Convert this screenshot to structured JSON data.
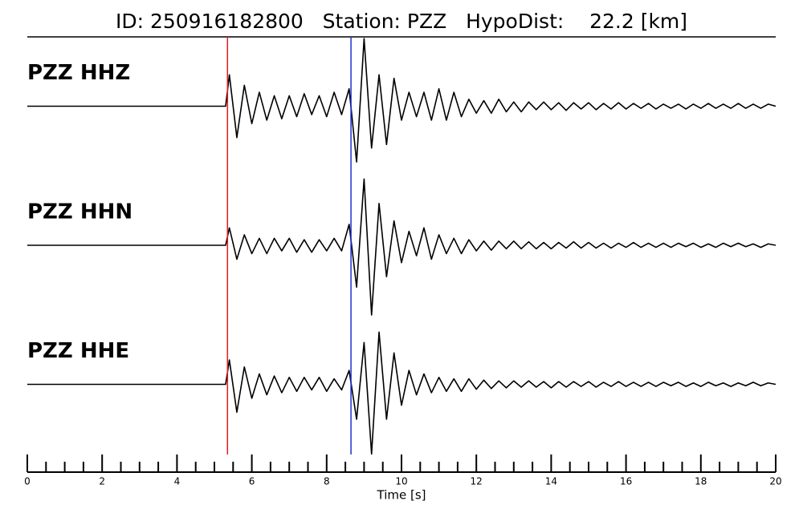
{
  "chart_data": {
    "type": "line",
    "title": "ID: 250916182800   Station: PZZ   HypoDist:    22.2 [km]",
    "xlabel": "Time [s]",
    "xlim": [
      0,
      20
    ],
    "xticks": [
      0,
      2,
      4,
      6,
      8,
      10,
      12,
      14,
      16,
      18,
      20
    ],
    "xminorticks": [
      0.5,
      1,
      1.5,
      2.5,
      3,
      3.5,
      4.5,
      5,
      5.5,
      6.5,
      7,
      7.5,
      8.5,
      9,
      9.5,
      10.5,
      11,
      11.5,
      12.5,
      13,
      13.5,
      14.5,
      15,
      15.5,
      16.5,
      17,
      17.5,
      18.5,
      19,
      19.5
    ],
    "ylim": [
      -1,
      1
    ],
    "label_color": "#4e9a06",
    "picks": [
      {
        "time": 5.35,
        "color": "#e41a1c"
      },
      {
        "time": 8.65,
        "color": "#1f2fd0"
      }
    ],
    "x": [
      0,
      5.3,
      5.4,
      5.6,
      5.8,
      6,
      6.2,
      6.4,
      6.6,
      6.8,
      7,
      7.2,
      7.4,
      7.6,
      7.8,
      8,
      8.2,
      8.4,
      8.6,
      8.8,
      9,
      9.2,
      9.4,
      9.6,
      9.8,
      10,
      10.2,
      10.4,
      10.6,
      10.8,
      11,
      11.2,
      11.4,
      11.6,
      11.8,
      12,
      12.2,
      12.4,
      12.6,
      12.8,
      13,
      13.2,
      13.4,
      13.6,
      13.8,
      14,
      14.2,
      14.4,
      14.6,
      14.8,
      15,
      15.2,
      15.4,
      15.6,
      15.8,
      16,
      16.2,
      16.4,
      16.6,
      16.8,
      17,
      17.2,
      17.4,
      17.6,
      17.8,
      18,
      18.2,
      18.4,
      18.6,
      18.8,
      19,
      19.2,
      19.4,
      19.6,
      19.8,
      20
    ],
    "series": [
      {
        "name": "PZZ HHZ",
        "color": "#000000",
        "values": [
          0,
          0,
          0.45,
          -0.45,
          0.3,
          -0.25,
          0.2,
          -0.2,
          0.15,
          -0.18,
          0.15,
          -0.15,
          0.18,
          -0.12,
          0.15,
          -0.15,
          0.2,
          -0.12,
          0.25,
          -0.8,
          0.97,
          -0.6,
          0.45,
          -0.55,
          0.4,
          -0.2,
          0.2,
          -0.15,
          0.2,
          -0.2,
          0.25,
          -0.2,
          0.2,
          -0.15,
          0.1,
          -0.1,
          0.08,
          -0.1,
          0.1,
          -0.08,
          0.06,
          -0.08,
          0.06,
          -0.05,
          0.06,
          -0.05,
          0.05,
          -0.06,
          0.05,
          -0.04,
          0.05,
          -0.05,
          0.04,
          -0.04,
          0.05,
          -0.04,
          0.04,
          -0.03,
          0.04,
          -0.04,
          0.03,
          -0.03,
          0.03,
          -0.04,
          0.03,
          -0.03,
          0.04,
          -0.03,
          0.03,
          -0.03,
          0.04,
          -0.03,
          0.03,
          -0.03,
          0.03,
          0
        ]
      },
      {
        "name": "PZZ HHN",
        "color": "#000000",
        "values": [
          0,
          0,
          0.25,
          -0.2,
          0.15,
          -0.12,
          0.1,
          -0.12,
          0.1,
          -0.08,
          0.1,
          -0.1,
          0.08,
          -0.1,
          0.08,
          -0.08,
          0.1,
          -0.08,
          0.3,
          -0.6,
          0.95,
          -1.0,
          0.6,
          -0.45,
          0.35,
          -0.25,
          0.2,
          -0.15,
          0.25,
          -0.2,
          0.15,
          -0.12,
          0.1,
          -0.12,
          0.08,
          -0.08,
          0.06,
          -0.07,
          0.06,
          -0.05,
          0.06,
          -0.05,
          0.05,
          -0.05,
          0.04,
          -0.05,
          0.04,
          -0.04,
          0.05,
          -0.04,
          0.04,
          -0.04,
          0.03,
          -0.04,
          0.03,
          -0.03,
          0.04,
          -0.03,
          0.03,
          -0.03,
          0.03,
          -0.03,
          0.03,
          -0.02,
          0.03,
          -0.03,
          0.02,
          -0.03,
          0.03,
          -0.02,
          0.03,
          -0.02,
          0.02,
          -0.03,
          0.02,
          0
        ]
      },
      {
        "name": "PZZ HHE",
        "color": "#000000",
        "values": [
          0,
          0,
          0.35,
          -0.4,
          0.25,
          -0.2,
          0.15,
          -0.15,
          0.12,
          -0.12,
          0.1,
          -0.1,
          0.1,
          -0.08,
          0.1,
          -0.1,
          0.08,
          -0.08,
          0.2,
          -0.5,
          0.6,
          -1.0,
          0.75,
          -0.5,
          0.45,
          -0.3,
          0.2,
          -0.15,
          0.15,
          -0.12,
          0.1,
          -0.1,
          0.08,
          -0.1,
          0.08,
          -0.07,
          0.06,
          -0.06,
          0.05,
          -0.05,
          0.05,
          -0.04,
          0.05,
          -0.04,
          0.04,
          -0.05,
          0.04,
          -0.04,
          0.04,
          -0.03,
          0.04,
          -0.04,
          0.03,
          -0.03,
          0.04,
          -0.03,
          0.03,
          -0.03,
          0.03,
          -0.03,
          0.03,
          -0.02,
          0.03,
          -0.03,
          0.02,
          -0.03,
          0.03,
          -0.02,
          0.02,
          -0.03,
          0.02,
          -0.02,
          0.03,
          -0.02,
          0.02,
          0
        ]
      }
    ]
  }
}
